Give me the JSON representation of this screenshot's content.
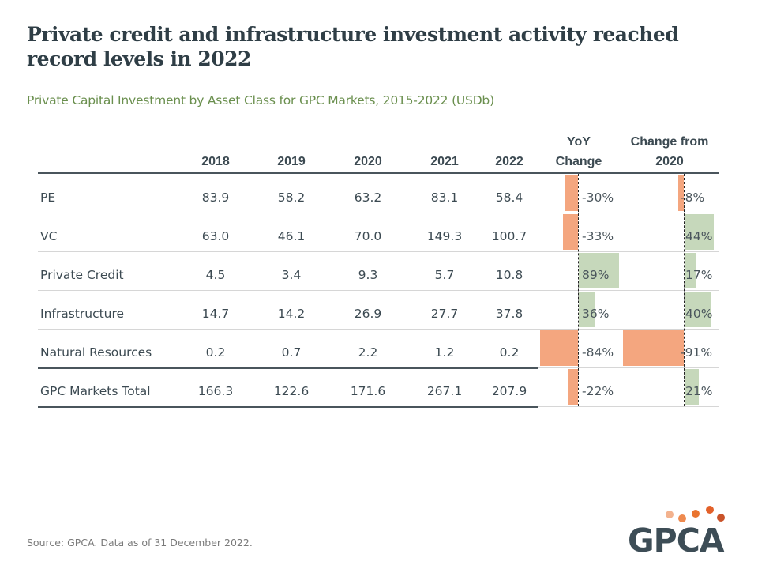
{
  "title": "Private credit and infrastructure investment activity reached record levels in 2022",
  "source": "Source: GPCA. Data as of 31 December 2022.",
  "logo": {
    "text": "GPCA",
    "dot_colors": [
      "#f3b28e",
      "#ee8a4f",
      "#e9742f",
      "#e3612a",
      "#c9532a"
    ]
  },
  "colors": {
    "negative": "#f4a67f",
    "positive": "#c6d8bb",
    "title": "#2f3e46",
    "subtitle": "#6a8f4e"
  },
  "chart_data": {
    "type": "table",
    "title": "Private Capital Investment by Asset Class for GPC Markets, 2015-2022 (USDb)",
    "columns": [
      "2018",
      "2019",
      "2020",
      "2021",
      "2022",
      "YoY Change",
      "Change from 2020"
    ],
    "column_headers": {
      "yoy_line1": "YoY",
      "yoy_line2": "Change",
      "c2020_line1": "Change from",
      "c2020_line2": "2020"
    },
    "rows": [
      {
        "label": "PE",
        "values": [
          "83.9",
          "58.2",
          "63.2",
          "83.1",
          "58.4"
        ],
        "yoy": -30,
        "yoy_label": "-30%",
        "change_2020": -8,
        "change_2020_label": "-8%"
      },
      {
        "label": "VC",
        "values": [
          "63.0",
          "46.1",
          "70.0",
          "149.3",
          "100.7"
        ],
        "yoy": -33,
        "yoy_label": "-33%",
        "change_2020": 44,
        "change_2020_label": "44%"
      },
      {
        "label": "Private Credit",
        "values": [
          "4.5",
          "3.4",
          "9.3",
          "5.7",
          "10.8"
        ],
        "yoy": 89,
        "yoy_label": "89%",
        "change_2020": 17,
        "change_2020_label": "17%"
      },
      {
        "label": "Infrastructure",
        "values": [
          "14.7",
          "14.2",
          "26.9",
          "27.7",
          "37.8"
        ],
        "yoy": 36,
        "yoy_label": "36%",
        "change_2020": 40,
        "change_2020_label": "40%"
      },
      {
        "label": "Natural Resources",
        "values": [
          "0.2",
          "0.7",
          "2.2",
          "1.2",
          "0.2"
        ],
        "yoy": -84,
        "yoy_label": "-84%",
        "change_2020": -91,
        "change_2020_label": "-91%"
      },
      {
        "label": "GPC Markets Total",
        "values": [
          "166.3",
          "122.6",
          "171.6",
          "267.1",
          "207.9"
        ],
        "yoy": -22,
        "yoy_label": "-22%",
        "change_2020": 21,
        "change_2020_label": "21%"
      }
    ]
  }
}
